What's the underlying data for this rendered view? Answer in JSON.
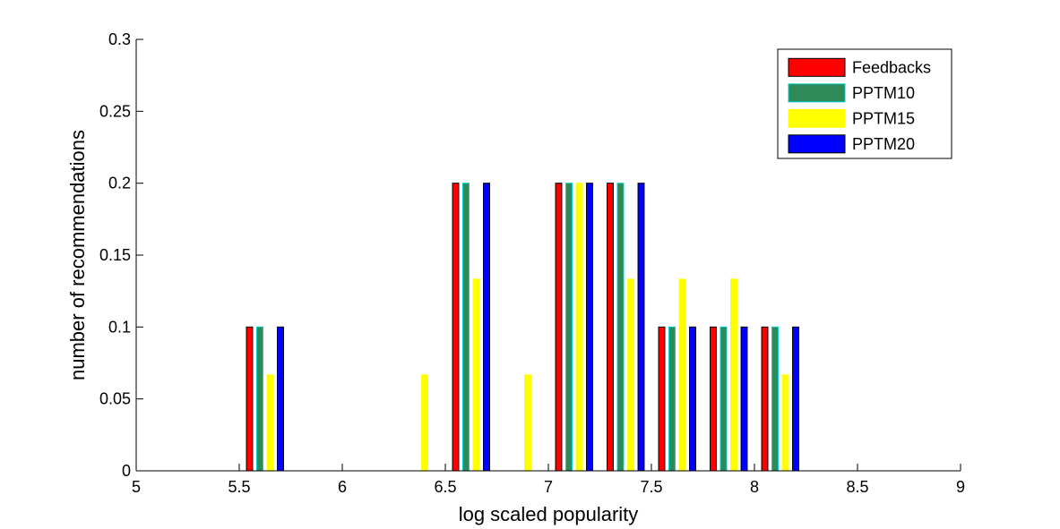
{
  "chart_data": {
    "type": "bar",
    "xlabel": "log scaled popularity",
    "ylabel": "number of recommendations",
    "xlim": [
      5,
      9
    ],
    "ylim": [
      0,
      0.3
    ],
    "xticks": [
      "5",
      "5.5",
      "6",
      "6.5",
      "7",
      "7.5",
      "8",
      "8.5",
      "9"
    ],
    "yticks": [
      "0",
      "0.05",
      "0.1",
      "0.15",
      "0.2",
      "0.25",
      "0.3"
    ],
    "bin_centers": [
      5.125,
      5.375,
      5.625,
      5.875,
      6.125,
      6.375,
      6.625,
      6.875,
      7.125,
      7.375,
      7.625,
      7.875,
      8.125,
      8.375,
      8.625,
      8.875
    ],
    "series": [
      {
        "name": "Feedbacks",
        "color": "#ff0000",
        "edge": "#000000",
        "values": [
          0,
          0,
          0.1,
          0,
          0,
          0,
          0.2,
          0,
          0.2,
          0.2,
          0.1,
          0.1,
          0.1,
          0,
          0,
          0
        ]
      },
      {
        "name": "PPTM10",
        "color": "#2e8b57",
        "edge": "#00cccc",
        "values": [
          0,
          0,
          0.1,
          0,
          0,
          0,
          0.2,
          0,
          0.2,
          0.2,
          0.1,
          0.1,
          0.1,
          0,
          0,
          0
        ]
      },
      {
        "name": "PPTM15",
        "color": "#ffff00",
        "edge": "#ffff00",
        "values": [
          0,
          0,
          0.0667,
          0,
          0,
          0.0667,
          0.1333,
          0.0667,
          0.2,
          0.1333,
          0.1333,
          0.1333,
          0.0667,
          0,
          0,
          0
        ]
      },
      {
        "name": "PPTM20",
        "color": "#0000ff",
        "edge": "#000000",
        "values": [
          0,
          0,
          0.1,
          0,
          0,
          0,
          0.2,
          0,
          0.2,
          0.2,
          0.1,
          0.1,
          0.1,
          0,
          0,
          0
        ]
      }
    ],
    "legend": {
      "placement": "top-right"
    },
    "grid": false
  }
}
